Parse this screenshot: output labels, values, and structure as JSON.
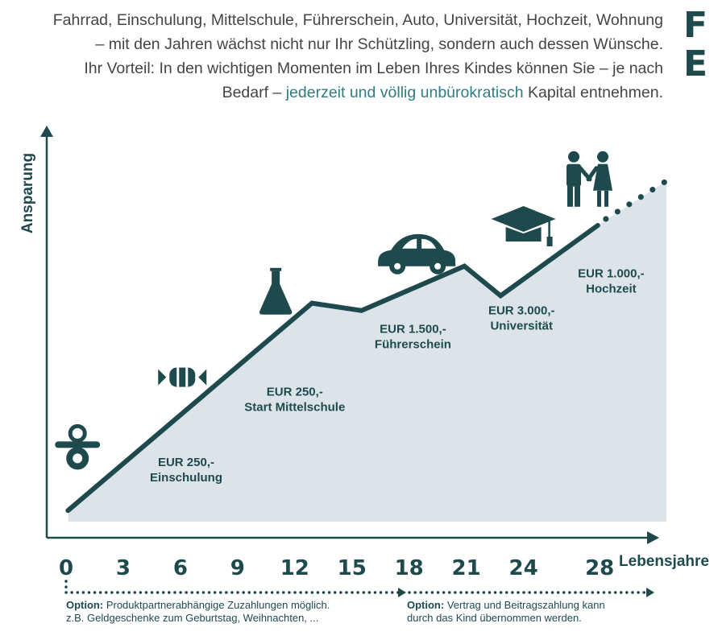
{
  "intro": {
    "line1": "Fahrrad, Einschulung, Mittelschule, Führerschein, Auto, Universität, Hochzeit, Wohnung",
    "line2": "– mit den Jahren wächst nicht nur Ihr Schützling, sondern auch dessen Wünsche.",
    "line3": "Ihr Vorteil: In den wichtigen Momenten im Leben Ihres Kindes können Sie – je nach",
    "line4_before": "Bedarf – ",
    "line4_highlight": "jederzeit und völlig unbürokratisch",
    "line4_after": " Kapital entnehmen."
  },
  "corner_letters": [
    "F",
    "E"
  ],
  "colors": {
    "primary": "#1e4a4d",
    "area": "#dce4ea",
    "highlight": "#2e7d82",
    "text": "#444444"
  },
  "chart_data": {
    "type": "area",
    "xlabel": "Lebensjahre",
    "ylabel": "Ansparung",
    "x_ticks": [
      "0",
      "3",
      "6",
      "9",
      "12",
      "15",
      "18",
      "21",
      "24",
      "28"
    ],
    "x_tick_values": [
      0,
      3,
      6,
      9,
      12,
      15,
      18,
      21,
      24,
      28
    ],
    "xlim": [
      0,
      31.5
    ],
    "ylim": [
      0,
      100
    ],
    "grid": false,
    "series": [
      {
        "points": [
          [
            0.1,
            3
          ],
          [
            12.9,
            59
          ],
          [
            15.5,
            57
          ],
          [
            20.9,
            69
          ],
          [
            22.8,
            61
          ],
          [
            27.9,
            80
          ]
        ],
        "dotted_extension": [
          [
            27.9,
            80
          ],
          [
            31.5,
            92
          ]
        ]
      }
    ],
    "annotations": [
      {
        "x": 6.3,
        "y": 15,
        "lines": [
          "EUR 250,-",
          "Einschulung"
        ],
        "icon": "pacifier-icon",
        "icon_x": 0.6,
        "icon_y": 21
      },
      {
        "x": 12.0,
        "y": 34,
        "lines": [
          "EUR 250,-",
          "Start Mittelschule"
        ],
        "icon": "candy-icon",
        "icon_x": 6.1,
        "icon_y": 39
      },
      {
        "x": 18.2,
        "y": 51,
        "lines": [
          "EUR 1.500,-",
          "Führerschein"
        ],
        "icon": "flask-icon",
        "icon_x": 11.0,
        "icon_y": 62
      },
      {
        "x": 23.9,
        "y": 56,
        "lines": [
          "EUR 3.000,-",
          "Universität"
        ],
        "icon": "car-icon",
        "icon_x": 18.4,
        "icon_y": 72
      },
      {
        "x": 28.6,
        "y": 66,
        "lines": [
          "EUR 1.000,-",
          "Hochzeit"
        ],
        "icon": "graduation-cap-icon",
        "icon_x": 24.0,
        "icon_y": 80
      }
    ],
    "extra_icons": [
      {
        "icon": "couple-icon",
        "x": 27.4,
        "y": 92
      }
    ]
  },
  "options": [
    {
      "label": "Option:",
      "line1_rest": " Produktpartnerabhängige Zuzahlungen möglich.",
      "line2": "z.B. Geldgeschenke zum Geburtstag, Weihnachten, ...",
      "x_from": 0,
      "x_to": 18
    },
    {
      "label": "Option:",
      "line1_rest": " Vertrag und Beitragszahlung kann",
      "line2": "durch das Kind übernommen werden.",
      "x_from": 18,
      "x_to": 31.5
    }
  ]
}
